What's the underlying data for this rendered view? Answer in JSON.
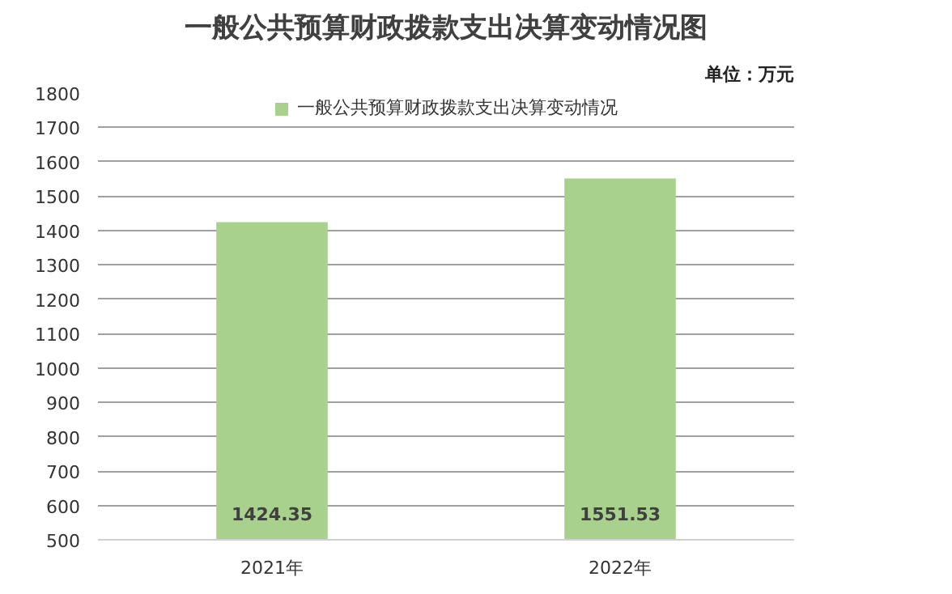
{
  "chart_data": {
    "type": "bar",
    "title": "一般公共预算财政拨款支出决算变动情况图",
    "categories": [
      "2021年",
      "2022年"
    ],
    "series": [
      {
        "name": "一般公共预算财政拨款支出决算变动情况",
        "color": "#a9d18e",
        "values": [
          1424.35,
          1551.53
        ]
      }
    ],
    "ylim": [
      500,
      1800
    ],
    "yticks": [
      500,
      600,
      700,
      800,
      900,
      1000,
      1100,
      1200,
      1300,
      1400,
      1500,
      1600,
      1700,
      1800
    ],
    "grid": "y",
    "legend": "top",
    "data_labels": true,
    "annotations": [
      "单位：万元"
    ]
  }
}
